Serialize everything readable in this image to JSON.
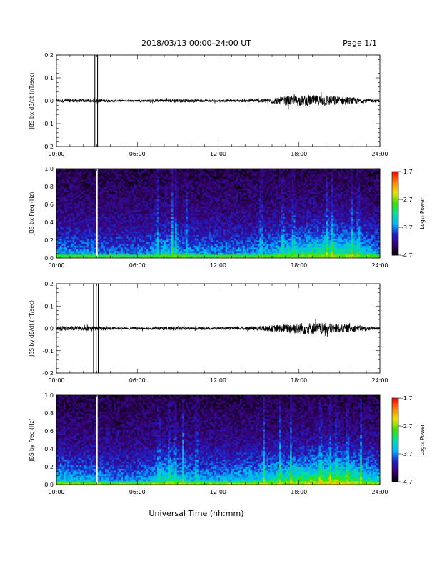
{
  "header": {
    "title": "2018/03/13  00:00–24:00 UT",
    "page": "Page 1/1"
  },
  "footer": {
    "xlabel": "Universal Time (hh:mm)"
  },
  "colors": {
    "colorbar_stops": [
      "#000000",
      "#3a0070",
      "#2020c8",
      "#00b4ff",
      "#00e0a0",
      "#40e000",
      "#e8e000",
      "#ff8000",
      "#ff0000"
    ]
  },
  "chart_data": [
    {
      "type": "line",
      "ylabel": "JBS bx dB/dt (nT/sec)",
      "xlim": [
        0,
        24
      ],
      "ylim": [
        -0.2,
        0.2
      ],
      "x_tick_labels": [
        "00:00",
        "06:00",
        "12:00",
        "18:00",
        "24:00"
      ],
      "y_tick_labels": [
        "0.2",
        "0.1",
        "0.0",
        "-0.1",
        "-0.2"
      ],
      "y_tick_values": [
        0.2,
        0.1,
        0.0,
        -0.1,
        -0.2
      ],
      "baseline": 0.0,
      "spikes_at_hours": [
        2.85,
        3.05,
        3.15
      ],
      "envelope": {
        "hours": [
          0,
          1,
          2,
          3,
          4,
          5,
          6,
          7,
          8,
          9,
          10,
          11,
          12,
          13,
          14,
          15,
          16,
          17,
          18,
          19,
          20,
          21,
          22,
          23,
          24
        ],
        "amplitude": [
          0.006,
          0.007,
          0.006,
          0.008,
          0.005,
          0.004,
          0.004,
          0.005,
          0.008,
          0.008,
          0.006,
          0.006,
          0.005,
          0.005,
          0.006,
          0.008,
          0.012,
          0.02,
          0.022,
          0.024,
          0.024,
          0.02,
          0.015,
          0.008,
          0.006
        ]
      }
    },
    {
      "type": "heatmap",
      "ylabel": "JBS bx Freq (Hz)",
      "xlim": [
        0,
        24
      ],
      "ylim": [
        0.0,
        1.0
      ],
      "x_tick_labels": [
        "00:00",
        "06:00",
        "12:00",
        "18:00",
        "24:00"
      ],
      "y_tick_labels": [
        "1.0",
        "0.8",
        "0.6",
        "0.4",
        "0.2",
        "0.0"
      ],
      "y_tick_values": [
        1.0,
        0.8,
        0.6,
        0.4,
        0.2,
        0.0
      ],
      "gap_hours": [
        2.95,
        3.05
      ],
      "colorbar": {
        "label": "Log₁₀ Power",
        "ticks": [
          "-1.7",
          "-2.7",
          "-3.7",
          "-4.7"
        ],
        "tick_values": [
          -1.7,
          -2.7,
          -3.7,
          -4.7
        ],
        "range": [
          -4.7,
          -1.7
        ]
      },
      "activity": {
        "hours": [
          0,
          1,
          2,
          3,
          4,
          5,
          6,
          7,
          8,
          9,
          10,
          11,
          12,
          13,
          14,
          15,
          16,
          17,
          18,
          19,
          20,
          21,
          22,
          23,
          24
        ],
        "level": [
          0.35,
          0.3,
          0.3,
          0.3,
          0.25,
          0.22,
          0.25,
          0.3,
          0.45,
          0.4,
          0.3,
          0.3,
          0.28,
          0.28,
          0.3,
          0.35,
          0.4,
          0.5,
          0.55,
          0.6,
          0.65,
          0.65,
          0.6,
          0.45,
          0.35
        ]
      },
      "stripe_hours": [
        7.5,
        8.6,
        8.9,
        9.7,
        15.2,
        16.8,
        17.6,
        20.1,
        20.5,
        21.9,
        22.4
      ]
    },
    {
      "type": "line",
      "ylabel": "JBS by dB/dt (nT/sec)",
      "xlim": [
        0,
        24
      ],
      "ylim": [
        -0.2,
        0.2
      ],
      "x_tick_labels": [
        "00:00",
        "06:00",
        "12:00",
        "18:00",
        "24:00"
      ],
      "y_tick_labels": [
        "0.2",
        "0.1",
        "0.0",
        "-0.1",
        "-0.2"
      ],
      "y_tick_values": [
        0.2,
        0.1,
        0.0,
        -0.1,
        -0.2
      ],
      "baseline": 0.0,
      "spikes_at_hours": [
        2.75,
        2.95,
        3.1
      ],
      "envelope": {
        "hours": [
          0,
          1,
          2,
          3,
          4,
          5,
          6,
          7,
          8,
          9,
          10,
          11,
          12,
          13,
          14,
          15,
          16,
          17,
          18,
          19,
          20,
          21,
          22,
          23,
          24
        ],
        "amplitude": [
          0.012,
          0.01,
          0.01,
          0.01,
          0.006,
          0.004,
          0.006,
          0.006,
          0.008,
          0.008,
          0.006,
          0.006,
          0.005,
          0.006,
          0.008,
          0.01,
          0.014,
          0.02,
          0.026,
          0.026,
          0.024,
          0.02,
          0.016,
          0.01,
          0.006
        ]
      }
    },
    {
      "type": "heatmap",
      "ylabel": "JBS by Freq (Hz)",
      "xlim": [
        0,
        24
      ],
      "ylim": [
        0.0,
        1.0
      ],
      "x_tick_labels": [
        "00:00",
        "06:00",
        "12:00",
        "18:00",
        "24:00"
      ],
      "y_tick_labels": [
        "1.0",
        "0.8",
        "0.6",
        "0.4",
        "0.2",
        "0.0"
      ],
      "y_tick_values": [
        1.0,
        0.8,
        0.6,
        0.4,
        0.2,
        0.0
      ],
      "gap_hours": [
        2.95,
        3.05
      ],
      "colorbar": {
        "label": "Log₁₀ Power",
        "ticks": [
          "-1.7",
          "-2.7",
          "-3.7",
          "-4.7"
        ],
        "tick_values": [
          -1.7,
          -2.7,
          -3.7,
          -4.7
        ],
        "range": [
          -4.7,
          -1.7
        ]
      },
      "activity": {
        "hours": [
          0,
          1,
          2,
          3,
          4,
          5,
          6,
          7,
          8,
          9,
          10,
          11,
          12,
          13,
          14,
          15,
          16,
          17,
          18,
          19,
          20,
          21,
          22,
          23,
          24
        ],
        "level": [
          0.45,
          0.4,
          0.38,
          0.35,
          0.3,
          0.28,
          0.3,
          0.35,
          0.55,
          0.5,
          0.4,
          0.38,
          0.38,
          0.4,
          0.42,
          0.48,
          0.55,
          0.62,
          0.68,
          0.72,
          0.75,
          0.75,
          0.7,
          0.55,
          0.45
        ]
      },
      "stripe_hours": [
        7.6,
        8.4,
        8.8,
        9.4,
        10.4,
        15.4,
        16.6,
        17.4,
        19.6,
        20.3,
        20.8,
        21.6,
        22.6
      ]
    }
  ]
}
